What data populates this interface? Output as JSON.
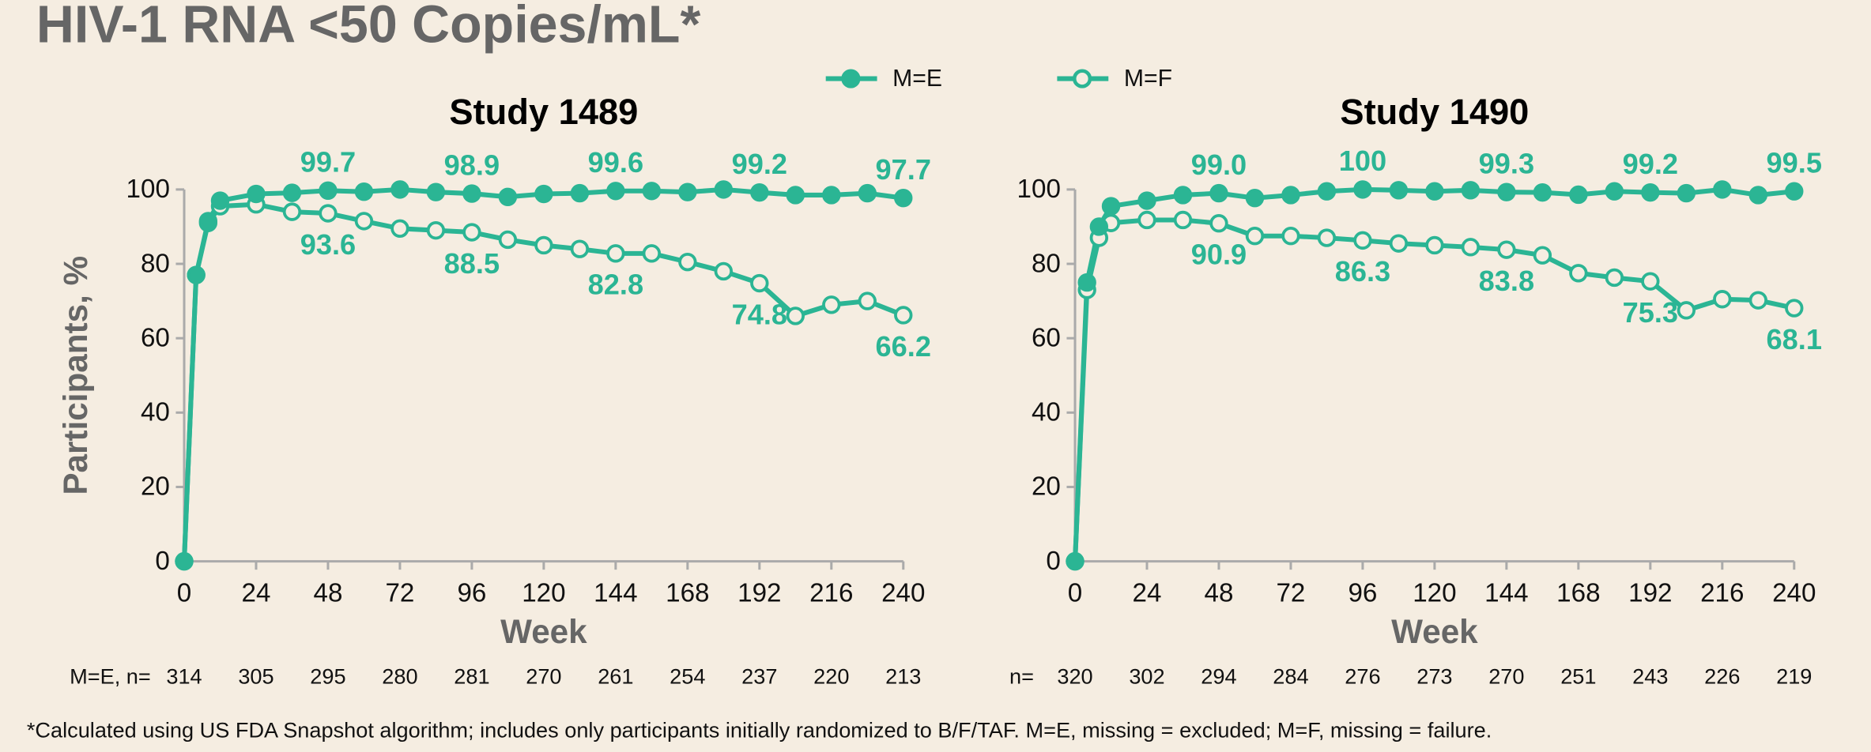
{
  "title": "HIV-1 RNA <50 Copies/mL*",
  "footnote": "*Calculated using US FDA Snapshot algorithm; includes only participants initially randomized to B/F/TAF. M=E, missing = excluded; M=F, missing = failure.",
  "chart_data": [
    {
      "type": "line",
      "title": "Study 1489",
      "x_label": "Week",
      "y_label": "Participants, %",
      "x": [
        0,
        4,
        8,
        12,
        24,
        36,
        48,
        60,
        72,
        84,
        96,
        108,
        120,
        132,
        144,
        156,
        168,
        180,
        192,
        204,
        216,
        228,
        240
      ],
      "series": [
        {
          "name": "M=E",
          "color": "#2bb594",
          "marker": "filled",
          "values": [
            0,
            77,
            91.5,
            97,
            98.8,
            99.1,
            99.7,
            99.4,
            100,
            99.3,
            98.9,
            98,
            98.8,
            99,
            99.6,
            99.6,
            99.3,
            100,
            99.2,
            98.5,
            98.5,
            99,
            97.7
          ],
          "value_labels": [
            null,
            null,
            null,
            null,
            null,
            null,
            "99.7",
            null,
            null,
            null,
            "98.9",
            null,
            null,
            null,
            "99.6",
            null,
            null,
            null,
            "99.2",
            null,
            null,
            null,
            "97.7"
          ]
        },
        {
          "name": "M=F",
          "color": "#2bb594",
          "marker": "open",
          "values": [
            0,
            77,
            91,
            95.5,
            96,
            94,
            93.6,
            91.5,
            89.5,
            89,
            88.5,
            86.5,
            85,
            84,
            82.8,
            82.8,
            80.5,
            78,
            74.8,
            66,
            69,
            70,
            66.2
          ],
          "value_labels": [
            null,
            null,
            null,
            null,
            null,
            null,
            "93.6",
            null,
            null,
            null,
            "88.5",
            null,
            null,
            null,
            "82.8",
            null,
            null,
            null,
            "74.8",
            null,
            null,
            null,
            "66.2"
          ]
        }
      ],
      "xlim": [
        0,
        240
      ],
      "ylim": [
        0,
        100
      ],
      "xticks": [
        0,
        24,
        48,
        72,
        96,
        120,
        144,
        168,
        192,
        216,
        240
      ],
      "yticks": [
        0,
        20,
        40,
        60,
        80,
        100
      ],
      "n_label": "M=E, n=",
      "n_values": [
        314,
        305,
        295,
        280,
        281,
        270,
        261,
        254,
        237,
        220,
        213
      ]
    },
    {
      "type": "line",
      "title": "Study 1490",
      "x_label": "Week",
      "x": [
        0,
        4,
        8,
        12,
        24,
        36,
        48,
        60,
        72,
        84,
        96,
        108,
        120,
        132,
        144,
        156,
        168,
        180,
        192,
        204,
        216,
        228,
        240
      ],
      "series": [
        {
          "name": "M=E",
          "color": "#2bb594",
          "marker": "filled",
          "values": [
            0,
            75,
            90,
            95.5,
            97,
            98.5,
            99,
            97.7,
            98.5,
            99.5,
            100,
            99.8,
            99.5,
            99.8,
            99.3,
            99.2,
            98.6,
            99.5,
            99.2,
            99,
            100,
            98.5,
            99.5
          ],
          "value_labels": [
            null,
            null,
            null,
            null,
            null,
            null,
            "99.0",
            null,
            null,
            null,
            "100",
            null,
            null,
            null,
            "99.3",
            null,
            null,
            null,
            "99.2",
            null,
            null,
            null,
            "99.5"
          ]
        },
        {
          "name": "M=F",
          "color": "#2bb594",
          "marker": "open",
          "values": [
            0,
            73,
            87,
            91,
            91.8,
            91.8,
            90.9,
            87.5,
            87.5,
            87,
            86.3,
            85.5,
            85,
            84.5,
            83.8,
            82.3,
            77.5,
            76.3,
            75.3,
            67.5,
            70.5,
            70.2,
            68.1
          ],
          "value_labels": [
            null,
            null,
            null,
            null,
            null,
            null,
            "90.9",
            null,
            null,
            null,
            "86.3",
            null,
            null,
            null,
            "83.8",
            null,
            null,
            null,
            "75.3",
            null,
            null,
            null,
            "68.1"
          ]
        }
      ],
      "xlim": [
        0,
        240
      ],
      "ylim": [
        0,
        100
      ],
      "xticks": [
        0,
        24,
        48,
        72,
        96,
        120,
        144,
        168,
        192,
        216,
        240
      ],
      "yticks": [
        0,
        20,
        40,
        60,
        80,
        100
      ],
      "n_label": "n=",
      "n_values": [
        320,
        302,
        294,
        284,
        276,
        273,
        270,
        251,
        243,
        226,
        219
      ]
    }
  ]
}
